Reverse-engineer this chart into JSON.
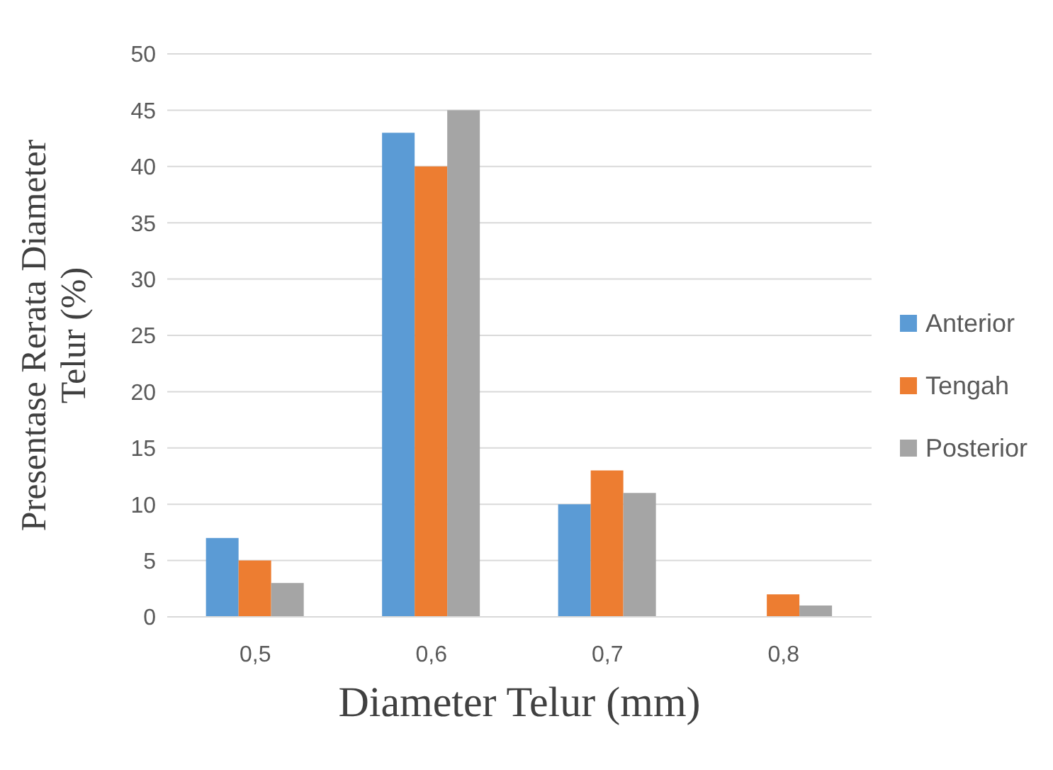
{
  "chart_data": {
    "type": "bar",
    "xlabel": "Diameter Telur (mm)",
    "ylabel": "Presentase Rerata Diameter Telur (%)",
    "categories": [
      "0,5",
      "0,6",
      "0,7",
      "0,8"
    ],
    "series": [
      {
        "name": "Anterior",
        "color": "#5b9bd5",
        "values": [
          7,
          43,
          10,
          0
        ]
      },
      {
        "name": "Tengah",
        "color": "#ed7d31",
        "values": [
          5,
          40,
          13,
          2
        ]
      },
      {
        "name": "Posterior",
        "color": "#a5a5a5",
        "values": [
          3,
          45,
          11,
          1
        ]
      }
    ],
    "ylim": [
      0,
      50
    ],
    "yticks": [
      0,
      5,
      10,
      15,
      20,
      25,
      30,
      35,
      40,
      45,
      50
    ],
    "grid": "y",
    "legend": "right"
  }
}
